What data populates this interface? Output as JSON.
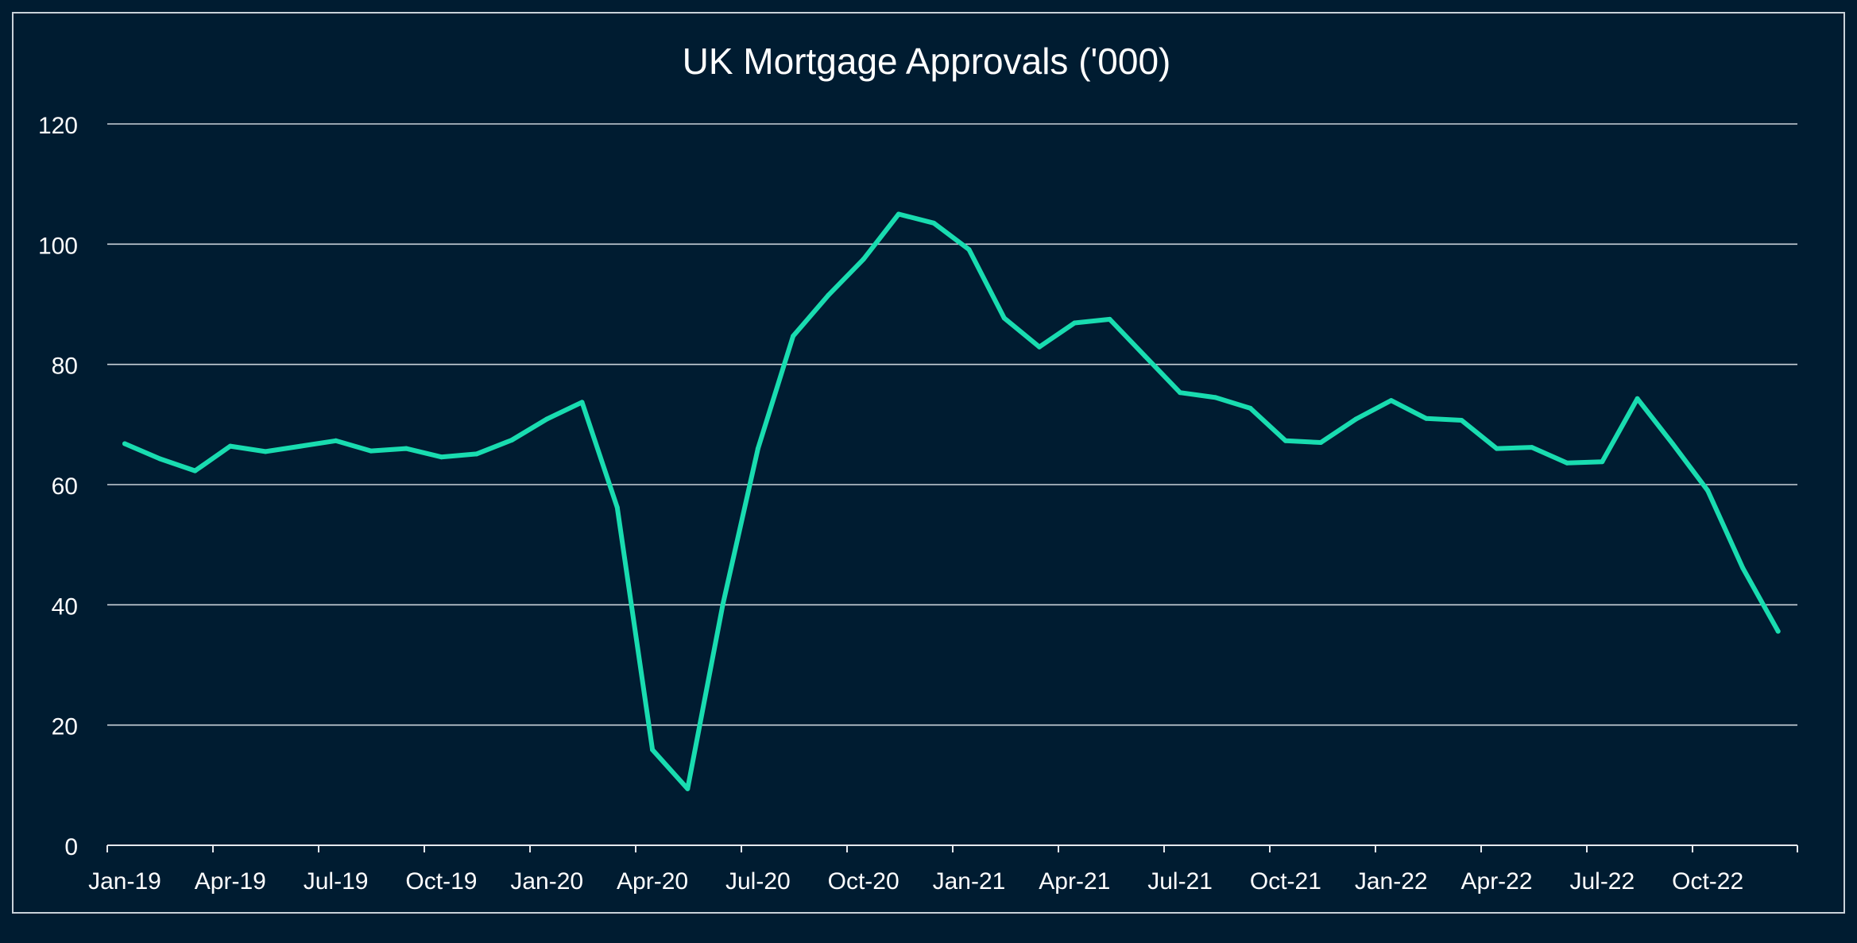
{
  "colors": {
    "background": "#001c31",
    "border": "#c9d1d9",
    "grid": "#c9d1d9",
    "axis": "#e6e9ee",
    "text": "#ffffff",
    "line": "#19dcb0"
  },
  "chart_data": {
    "type": "line",
    "title": "UK Mortgage Approvals ('000)",
    "xlabel": "",
    "ylabel": "",
    "ylim": [
      0,
      120
    ],
    "y_ticks": [
      0,
      20,
      40,
      60,
      80,
      100,
      120
    ],
    "y_tick_labels": [
      "0",
      "20",
      "40",
      "60",
      "80",
      "100",
      "120"
    ],
    "x_tick_labels": [
      "Jan-19",
      "Apr-19",
      "Jul-19",
      "Oct-19",
      "Jan-20",
      "Apr-20",
      "Jul-20",
      "Oct-20",
      "Jan-21",
      "Apr-21",
      "Jul-21",
      "Oct-21",
      "Jan-22",
      "Apr-22",
      "Jul-22",
      "Oct-22"
    ],
    "grid": true,
    "legend": "none",
    "x": [
      "Jan-19",
      "Feb-19",
      "Mar-19",
      "Apr-19",
      "May-19",
      "Jun-19",
      "Jul-19",
      "Aug-19",
      "Sep-19",
      "Oct-19",
      "Nov-19",
      "Dec-19",
      "Jan-20",
      "Feb-20",
      "Mar-20",
      "Apr-20",
      "May-20",
      "Jun-20",
      "Jul-20",
      "Aug-20",
      "Sep-20",
      "Oct-20",
      "Nov-20",
      "Dec-20",
      "Jan-21",
      "Feb-21",
      "Mar-21",
      "Apr-21",
      "May-21",
      "Jun-21",
      "Jul-21",
      "Aug-21",
      "Sep-21",
      "Oct-21",
      "Nov-21",
      "Dec-21",
      "Jan-22",
      "Feb-22",
      "Mar-22",
      "Apr-22",
      "May-22",
      "Jun-22",
      "Jul-22",
      "Aug-22",
      "Sep-22",
      "Oct-22",
      "Nov-22",
      "Dec-22"
    ],
    "series": [
      {
        "values": [
          66.8,
          64.3,
          62.3,
          66.4,
          65.5,
          66.4,
          67.3,
          65.6,
          66.0,
          64.6,
          65.1,
          67.4,
          70.9,
          73.7,
          56.2,
          15.9,
          9.4,
          40.0,
          66.0,
          84.7,
          91.5,
          97.5,
          105.0,
          103.5,
          99.1,
          87.7,
          82.9,
          86.9,
          87.5,
          81.4,
          75.3,
          74.5,
          72.7,
          67.3,
          67.0,
          70.9,
          74.0,
          71.0,
          70.7,
          66.0,
          66.2,
          63.6,
          63.8,
          74.3,
          66.8,
          59.0,
          46.1,
          35.6
        ]
      }
    ]
  }
}
